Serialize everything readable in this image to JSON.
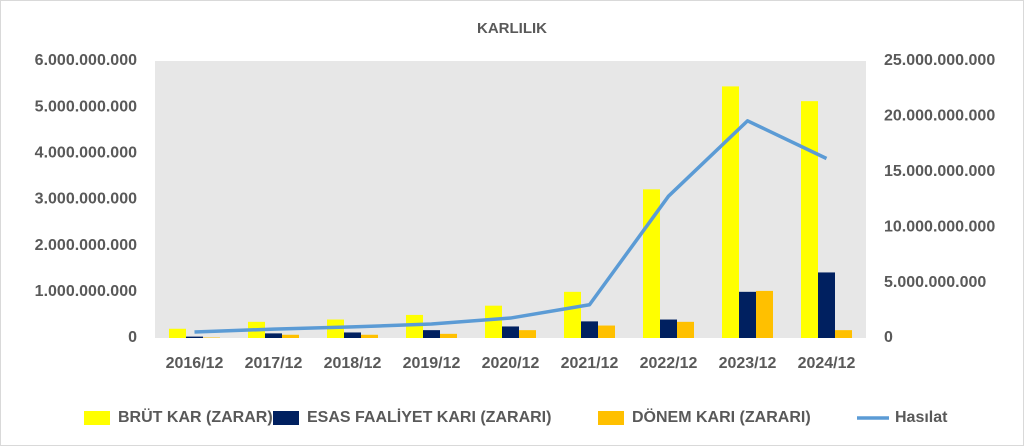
{
  "chart_data": {
    "type": "bar-line",
    "title": "KARLILIK",
    "categories": [
      "2016/12",
      "2017/12",
      "2018/12",
      "2019/12",
      "2020/12",
      "2021/12",
      "2022/12",
      "2023/12",
      "2024/12"
    ],
    "series": [
      {
        "name": "BRÜT KAR (ZARAR)",
        "color": "#ffff00",
        "type": "bar",
        "values": [
          200000000,
          350000000,
          400000000,
          500000000,
          700000000,
          1000000000,
          3220000000,
          5450000000,
          5130000000
        ]
      },
      {
        "name": "ESAS FAALİYET KARI (ZARARI)",
        "color": "#002060",
        "type": "bar",
        "values": [
          30000000,
          100000000,
          120000000,
          170000000,
          250000000,
          360000000,
          400000000,
          1000000000,
          1420000000
        ]
      },
      {
        "name": "DÖNEM KARI (ZARARI)",
        "color": "#ffc000",
        "type": "bar",
        "values": [
          10000000,
          70000000,
          70000000,
          90000000,
          170000000,
          270000000,
          350000000,
          1020000000,
          170000000
        ]
      },
      {
        "name": "Hasılat",
        "color": "#5b9bd5",
        "type": "line",
        "axis": "y2",
        "values": [
          540000000,
          800000000,
          1000000000,
          1260000000,
          1800000000,
          3000000000,
          12800000000,
          19600000000,
          16200000000
        ]
      }
    ],
    "ylim": [
      0,
      6000000000
    ],
    "yticks": [
      0,
      {
        "value": 1000000000,
        "label": "1.000.000.000"
      },
      {
        "value": 2000000000,
        "label": "2.000.000.000"
      },
      {
        "value": 3000000000,
        "label": "3.000.000.000"
      },
      {
        "value": 4000000000,
        "label": "4.000.000.000"
      },
      {
        "value": 5000000000,
        "label": "5.000.000.000"
      },
      {
        "value": 6000000000,
        "label": "6.000.000.000"
      }
    ],
    "y2lim": [
      0,
      25000000000
    ],
    "y2ticks": [
      0,
      {
        "value": 5000000000,
        "label": "5.000.000.000"
      },
      {
        "value": 10000000000,
        "label": "10.000.000.000"
      },
      {
        "value": 15000000000,
        "label": "15.000.000.000"
      },
      {
        "value": 20000000000,
        "label": "20.000.000.000"
      },
      {
        "value": 25000000000,
        "label": "25.000.000.000"
      }
    ],
    "legend": "bottom"
  }
}
